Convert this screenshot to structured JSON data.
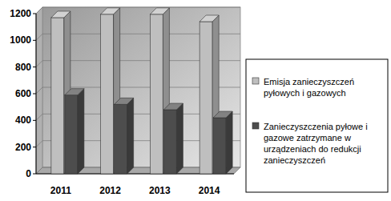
{
  "chart_data": {
    "type": "bar",
    "categories": [
      "2011",
      "2012",
      "2013",
      "2014"
    ],
    "series": [
      {
        "name": "Emisja zanieczyszczeń pyłowych i gazowych",
        "color": "#bfbfbf",
        "values": [
          1170,
          1195,
          1195,
          1140
        ]
      },
      {
        "name": "Zanieczyszczenia pyłowe i gazowe zatrzymane w urządzeniach do redukcji zanieczyszczeń",
        "color": "#4d4d4d",
        "values": [
          590,
          520,
          480,
          420
        ]
      }
    ],
    "ylim": [
      0,
      1200
    ],
    "yticks": [
      0,
      200,
      400,
      600,
      800,
      1000,
      1200
    ],
    "grid": true,
    "legend": "right"
  }
}
